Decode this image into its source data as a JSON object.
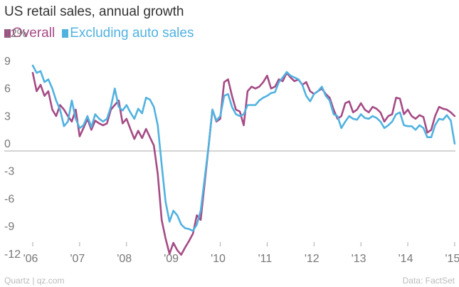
{
  "header": {
    "title": "US retail sales, annual growth"
  },
  "footer": {
    "source_left": "Quartz | qz.com",
    "source_right": "Data: FactSet"
  },
  "colors": {
    "overall": "#a54b85",
    "excluding_auto": "#51b2e0",
    "axis": "#aaaaaa",
    "tick": "#777777"
  },
  "chart_data": {
    "type": "line",
    "title": "US retail sales, annual growth",
    "xlabel": "",
    "ylabel": "",
    "ylim": [
      -14,
      13
    ],
    "xlim": [
      2005.83,
      2015.1
    ],
    "yticks": [
      12,
      9,
      6,
      3,
      0,
      -3,
      -6,
      -9,
      -12
    ],
    "ytick_labels": [
      "12%",
      "9",
      "6",
      "3",
      "0",
      "-3",
      "-6",
      "-9",
      "-12"
    ],
    "xticks": [
      2006,
      2007,
      2008,
      2009,
      2010,
      2011,
      2012,
      2013,
      2014,
      2015
    ],
    "xtick_labels": [
      "'06",
      "'07",
      "'08",
      "'09",
      "'10",
      "'11",
      "'12",
      "'13",
      "'14",
      "'15"
    ],
    "legend": "top-left",
    "grid": false,
    "series": [
      {
        "name": "Overall",
        "x": [
          2006.0,
          2006.083,
          2006.167,
          2006.25,
          2006.333,
          2006.417,
          2006.5,
          2006.583,
          2006.667,
          2006.75,
          2006.833,
          2006.917,
          2007.0,
          2007.083,
          2007.167,
          2007.25,
          2007.333,
          2007.417,
          2007.5,
          2007.583,
          2007.667,
          2007.75,
          2007.833,
          2007.917,
          2008.0,
          2008.083,
          2008.167,
          2008.25,
          2008.333,
          2008.417,
          2008.5,
          2008.583,
          2008.667,
          2008.75,
          2008.833,
          2008.917,
          2009.0,
          2009.083,
          2009.167,
          2009.25,
          2009.333,
          2009.417,
          2009.5,
          2009.583,
          2009.667,
          2009.75,
          2009.833,
          2009.917,
          2010.0,
          2010.083,
          2010.167,
          2010.25,
          2010.333,
          2010.417,
          2010.5,
          2010.583,
          2010.667,
          2010.75,
          2010.833,
          2010.917,
          2011.0,
          2011.083,
          2011.167,
          2011.25,
          2011.333,
          2011.417,
          2011.5,
          2011.583,
          2011.667,
          2011.75,
          2011.833,
          2011.917,
          2012.0,
          2012.083,
          2012.167,
          2012.25,
          2012.333,
          2012.417,
          2012.5,
          2012.583,
          2012.667,
          2012.75,
          2012.833,
          2012.917,
          2013.0,
          2013.083,
          2013.167,
          2013.25,
          2013.333,
          2013.417,
          2013.5,
          2013.583,
          2013.667,
          2013.75,
          2013.833,
          2013.917,
          2014.0,
          2014.083,
          2014.167,
          2014.25,
          2014.333,
          2014.417,
          2014.5,
          2014.583,
          2014.667,
          2014.75,
          2014.833,
          2014.917,
          2015.0
        ],
        "values": [
          8.5,
          6.5,
          7.2,
          6.0,
          6.5,
          4.5,
          3.8,
          5.0,
          4.5,
          3.8,
          3.2,
          4.5,
          1.6,
          2.5,
          3.5,
          2.3,
          3.3,
          3.0,
          2.8,
          3.0,
          4.5,
          5.0,
          5.5,
          3.0,
          3.5,
          2.4,
          1.3,
          2.2,
          1.4,
          2.4,
          1.5,
          0.6,
          -2.5,
          -7.5,
          -9.5,
          -11.2,
          -10.0,
          -10.8,
          -11.3,
          -10.5,
          -9.8,
          -9.0,
          -7.0,
          -7.5,
          -3.5,
          0.5,
          4.5,
          3.2,
          3.5,
          7.5,
          7.8,
          6.0,
          4.5,
          4.3,
          2.8,
          6.5,
          7.0,
          6.8,
          7.0,
          7.5,
          8.2,
          6.8,
          7.0,
          7.8,
          7.6,
          8.5,
          8.0,
          7.6,
          7.8,
          7.2,
          7.5,
          6.5,
          6.2,
          6.5,
          6.8,
          6.2,
          5.8,
          4.5,
          3.5,
          3.8,
          5.2,
          5.4,
          4.2,
          4.5,
          5.2,
          4.5,
          4.2,
          4.8,
          4.6,
          4.2,
          3.2,
          3.8,
          4.0,
          5.8,
          5.7,
          4.0,
          4.5,
          3.8,
          3.5,
          3.9,
          3.7,
          2.0,
          2.3,
          3.8,
          4.8,
          4.6,
          4.5,
          4.2,
          3.8
        ]
      },
      {
        "name": "Excluding auto sales",
        "x": [
          2006.0,
          2006.083,
          2006.167,
          2006.25,
          2006.333,
          2006.417,
          2006.5,
          2006.583,
          2006.667,
          2006.75,
          2006.833,
          2006.917,
          2007.0,
          2007.083,
          2007.167,
          2007.25,
          2007.333,
          2007.417,
          2007.5,
          2007.583,
          2007.667,
          2007.75,
          2007.833,
          2007.917,
          2008.0,
          2008.083,
          2008.167,
          2008.25,
          2008.333,
          2008.417,
          2008.5,
          2008.583,
          2008.667,
          2008.75,
          2008.833,
          2008.917,
          2009.0,
          2009.083,
          2009.167,
          2009.25,
          2009.333,
          2009.417,
          2009.5,
          2009.583,
          2009.667,
          2009.75,
          2009.833,
          2009.917,
          2010.0,
          2010.083,
          2010.167,
          2010.25,
          2010.333,
          2010.417,
          2010.5,
          2010.583,
          2010.667,
          2010.75,
          2010.833,
          2010.917,
          2011.0,
          2011.083,
          2011.167,
          2011.25,
          2011.333,
          2011.417,
          2011.5,
          2011.583,
          2011.667,
          2011.75,
          2011.833,
          2011.917,
          2012.0,
          2012.083,
          2012.167,
          2012.25,
          2012.333,
          2012.417,
          2012.5,
          2012.583,
          2012.667,
          2012.75,
          2012.833,
          2012.917,
          2013.0,
          2013.083,
          2013.167,
          2013.25,
          2013.333,
          2013.417,
          2013.5,
          2013.583,
          2013.667,
          2013.75,
          2013.833,
          2013.917,
          2014.0,
          2014.083,
          2014.167,
          2014.25,
          2014.333,
          2014.417,
          2014.5,
          2014.583,
          2014.667,
          2014.75,
          2014.833,
          2014.917,
          2015.0
        ],
        "values": [
          9.3,
          8.5,
          8.7,
          7.5,
          7.8,
          6.8,
          5.5,
          4.5,
          2.7,
          3.2,
          5.5,
          3.5,
          2.5,
          2.8,
          3.8,
          2.6,
          4.0,
          3.5,
          3.2,
          3.5,
          4.8,
          6.8,
          4.8,
          4.4,
          5.0,
          4.2,
          3.5,
          4.6,
          4.1,
          5.8,
          5.6,
          4.8,
          2.8,
          -1.5,
          -5.5,
          -7.7,
          -6.5,
          -7.0,
          -8.0,
          -8.4,
          -8.5,
          -8.7,
          -8.0,
          -6.5,
          -3.0,
          0.5,
          4.5,
          3.3,
          3.8,
          6.0,
          6.2,
          4.8,
          4.0,
          3.8,
          4.0,
          5.0,
          5.0,
          5.0,
          5.5,
          5.8,
          6.0,
          6.3,
          6.4,
          7.5,
          8.0,
          8.6,
          8.2,
          8.0,
          7.8,
          7.2,
          6.0,
          5.4,
          6.2,
          6.5,
          7.0,
          6.0,
          5.5,
          4.0,
          3.8,
          2.5,
          3.2,
          3.8,
          3.5,
          3.4,
          4.0,
          3.6,
          3.5,
          3.8,
          3.6,
          3.2,
          2.5,
          2.8,
          3.2,
          4.0,
          4.2,
          2.8,
          2.7,
          2.7,
          2.3,
          2.8,
          2.5,
          1.5,
          1.5,
          2.8,
          3.5,
          3.4,
          3.9,
          3.3,
          0.8
        ]
      }
    ]
  }
}
